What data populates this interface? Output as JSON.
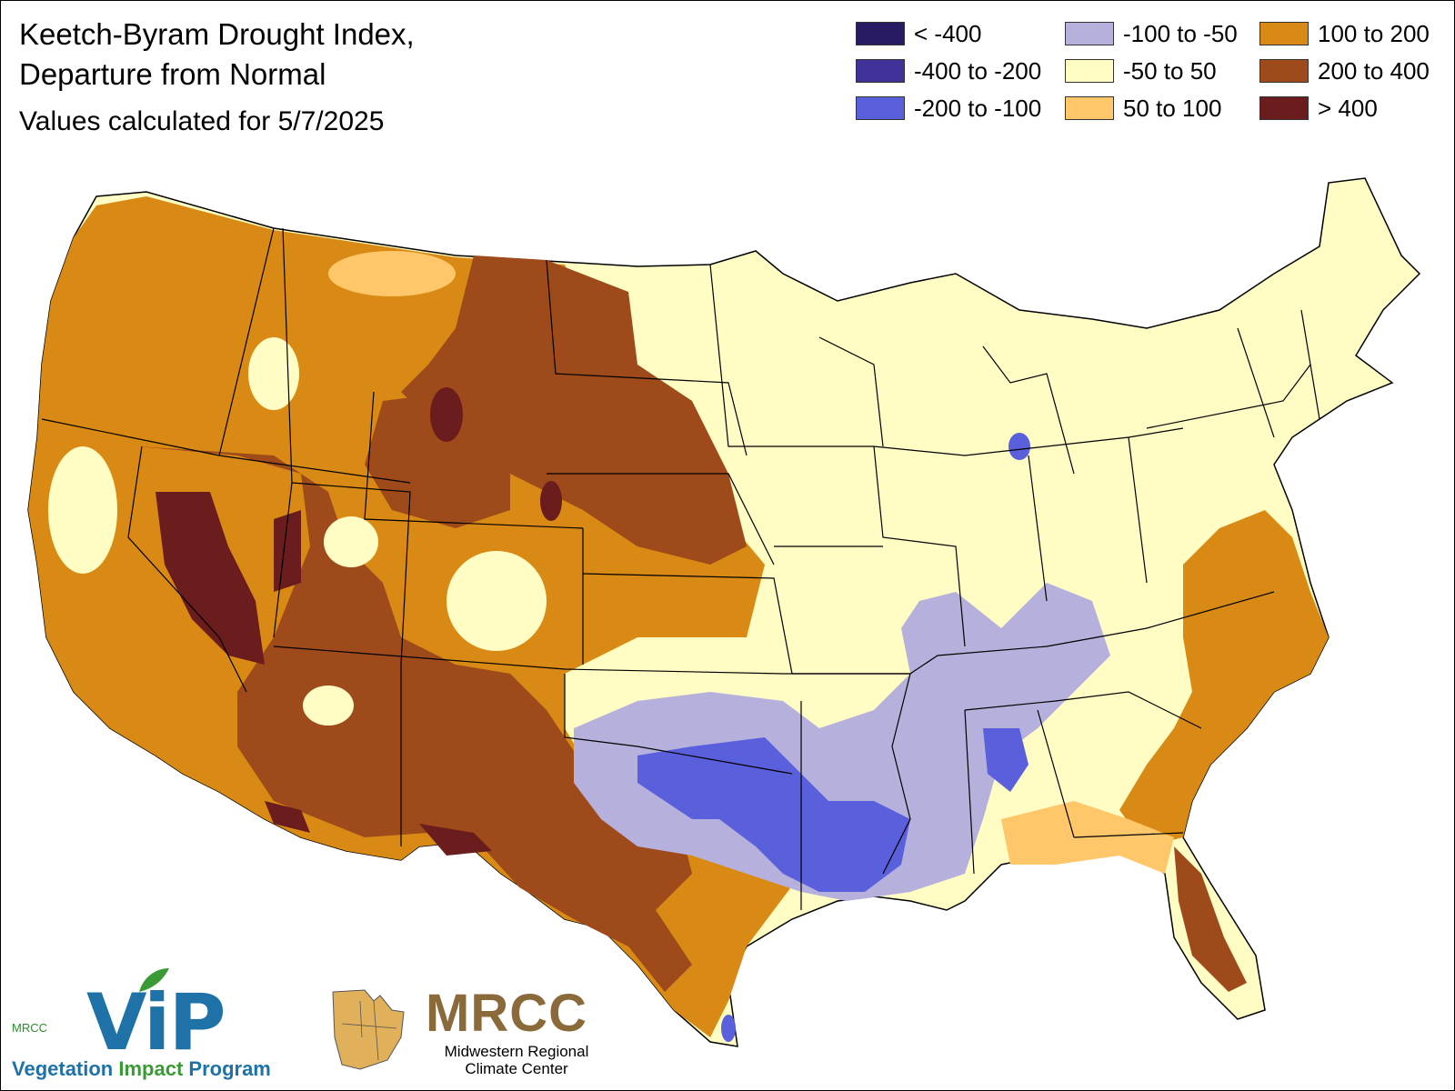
{
  "title": {
    "line1": "Keetch-Byram Drought Index,",
    "line2": "Departure from Normal",
    "line3": "Values calculated for 5/7/2025"
  },
  "legend": [
    {
      "label": "< -400",
      "color": "#2a1a66"
    },
    {
      "label": "-400 to -200",
      "color": "#3f3399"
    },
    {
      "label": "-200 to -100",
      "color": "#5a5fdc"
    },
    {
      "label": "-100 to -50",
      "color": "#b6b0dc"
    },
    {
      "label": "-50 to 50",
      "color": "#fffcc4"
    },
    {
      "label": "50 to 100",
      "color": "#ffc66a"
    },
    {
      "label": "100 to 200",
      "color": "#d98a14"
    },
    {
      "label": "200 to 400",
      "color": "#9e4a1a"
    },
    {
      "label": "> 400",
      "color": "#6b1c1c"
    }
  ],
  "logos": {
    "vip": {
      "mark": "ViP",
      "small": "MRCC",
      "text_part1": "Vegetation ",
      "text_part2": "Impact",
      "text_part3": " Program"
    },
    "mrcc": {
      "mark": "MRCC",
      "subtitle_line1": "Midwestern Regional",
      "subtitle_line2": "Climate Center"
    }
  }
}
